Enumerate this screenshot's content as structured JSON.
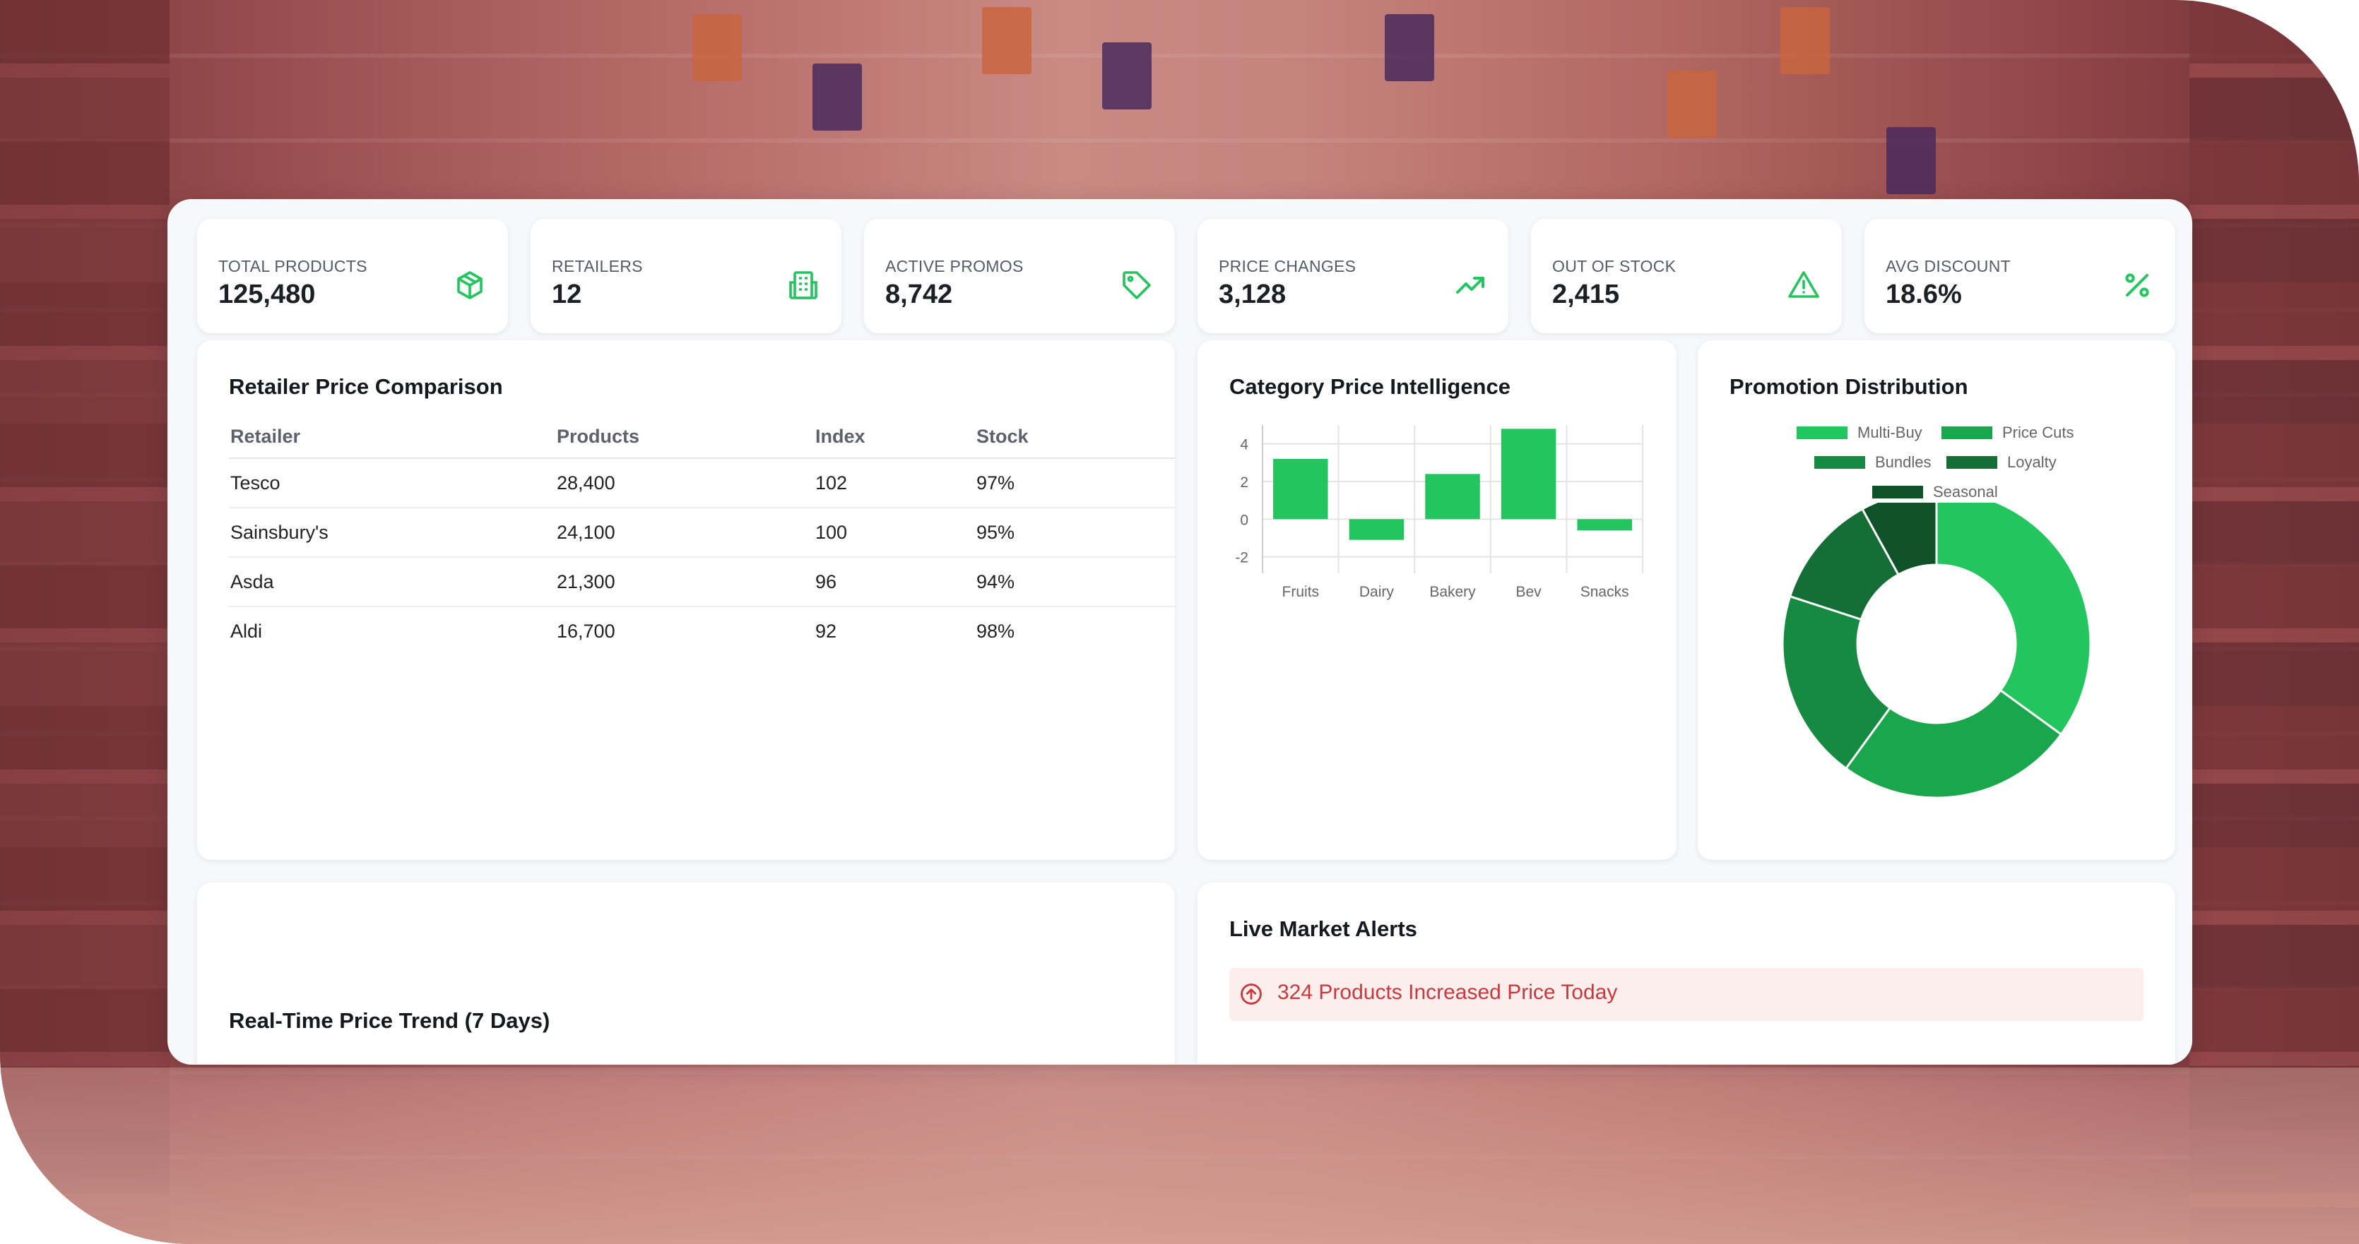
{
  "stats": [
    {
      "label": "TOTAL PRODUCTS",
      "value": "125,480",
      "icon": "box-icon"
    },
    {
      "label": "RETAILERS",
      "value": "12",
      "icon": "building-icon"
    },
    {
      "label": "ACTIVE PROMOS",
      "value": "8,742",
      "icon": "tag-icon"
    },
    {
      "label": "PRICE CHANGES",
      "value": "3,128",
      "icon": "trending-up-icon"
    },
    {
      "label": "OUT OF STOCK",
      "value": "2,415",
      "icon": "warning-icon"
    },
    {
      "label": "AVG DISCOUNT",
      "value": "18.6%",
      "icon": "percent-icon"
    }
  ],
  "retailer_table": {
    "title": "Retailer Price Comparison",
    "headers": [
      "Retailer",
      "Products",
      "Index",
      "Stock"
    ],
    "rows": [
      [
        "Tesco",
        "28,400",
        "102",
        "97%"
      ],
      [
        "Sainsbury's",
        "24,100",
        "100",
        "95%"
      ],
      [
        "Asda",
        "21,300",
        "96",
        "94%"
      ],
      [
        "Aldi",
        "16,700",
        "92",
        "98%"
      ]
    ]
  },
  "category_chart": {
    "title": "Category Price Intelligence",
    "chart_data": {
      "type": "bar",
      "categories": [
        "Fruits",
        "Dairy",
        "Bakery",
        "Bev",
        "Snacks"
      ],
      "values": [
        3.2,
        -1.1,
        2.4,
        4.8,
        -0.6
      ],
      "yticks": [
        "4",
        "2",
        "0",
        "-2"
      ],
      "ylim": [
        -2,
        5
      ],
      "grid": true,
      "color": "#22c55e"
    }
  },
  "promo_chart": {
    "title": "Promotion Distribution",
    "chart_data": {
      "type": "pie",
      "labels": [
        "Multi-Buy",
        "Price Cuts",
        "Bundles",
        "Loyalty",
        "Seasonal"
      ],
      "values": [
        35,
        25,
        20,
        12,
        8
      ],
      "colors": [
        "#22c55e",
        "#1aa64c",
        "#168a40",
        "#146e35",
        "#0f5129"
      ],
      "legend": "top"
    }
  },
  "trend_card": {
    "title": "Real-Time Price Trend (7 Days)"
  },
  "alerts": {
    "title": "Live Market Alerts",
    "items": [
      {
        "text": "324 Products Increased Price Today",
        "icon": "arrow-up-circle-icon"
      }
    ]
  },
  "colors": {
    "accent": "#22c55e",
    "alert": "#c9393b",
    "alert_bg": "#fdeeee"
  }
}
